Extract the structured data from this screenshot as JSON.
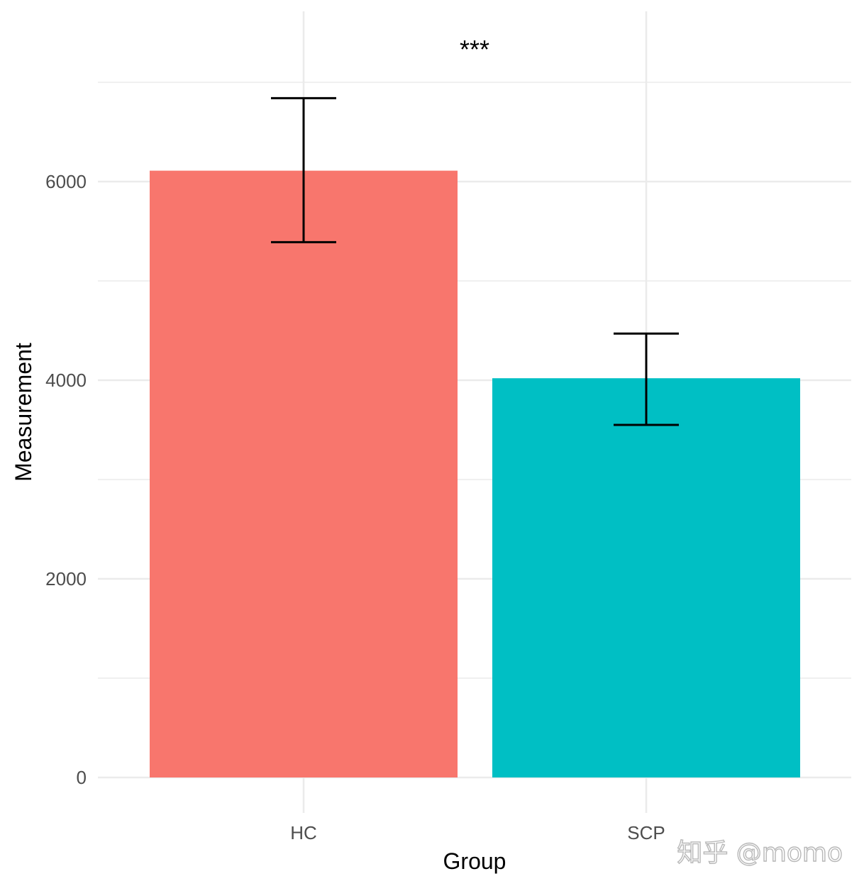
{
  "chart_data": {
    "type": "bar",
    "categories": [
      "HC",
      "SCP"
    ],
    "values": [
      6110,
      4020
    ],
    "error_bars": [
      {
        "lower": 5390,
        "upper": 6840
      },
      {
        "lower": 3550,
        "upper": 4470
      }
    ],
    "colors": [
      "#F8766D",
      "#00BFC4"
    ],
    "title": "",
    "xlabel": "Group",
    "ylabel": "Measurement",
    "ylim": [
      0,
      7000
    ],
    "yticks": [
      0,
      2000,
      4000,
      6000
    ],
    "ytick_labels": [
      "0",
      "2000",
      "4000",
      "6000"
    ],
    "grid": true,
    "legend": "none",
    "annotation": "***"
  },
  "watermark": "知乎 @momo"
}
